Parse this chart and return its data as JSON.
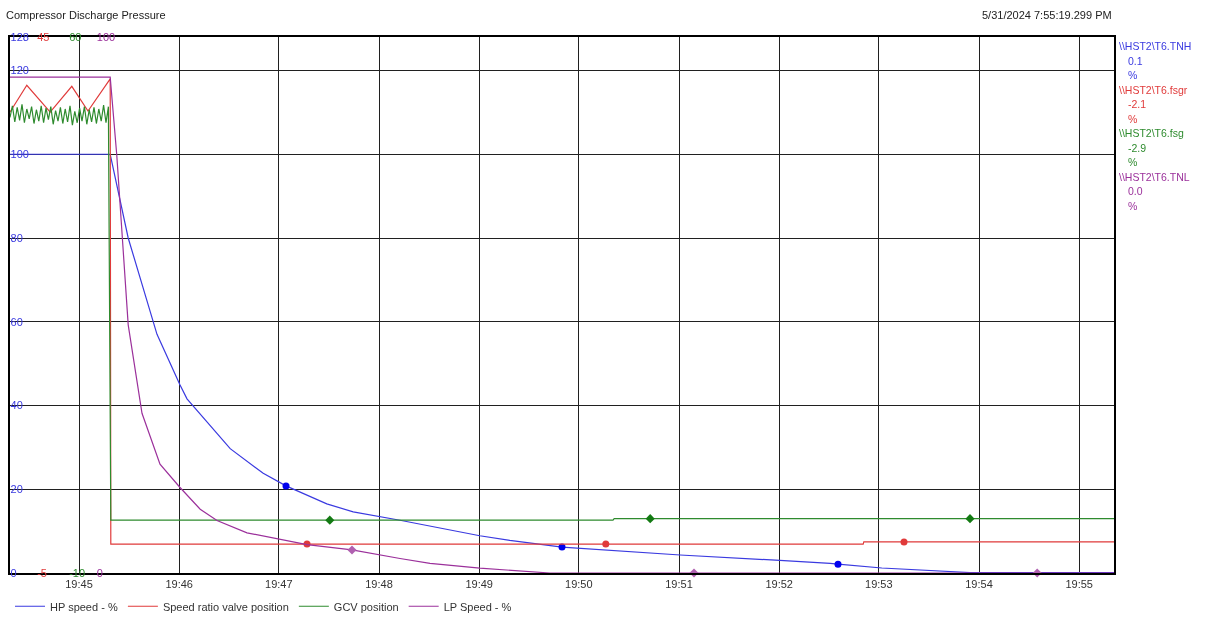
{
  "chart_data": [
    {
      "type": "line",
      "title": "Compressor Discharge Pressure",
      "annotations": [
        "5/31/2024 7:55:19.299 PM",
        "\\\\HST2\\T6.TNH",
        "0.1",
        "%",
        "\\\\HST2\\T6.fsgr",
        "-2.1",
        "%",
        "\\\\HST2\\T6.fsg",
        "-2.9",
        "%"
      ],
      "xlim": [
        19.7385,
        19.9225
      ],
      "xticks": [
        {
          "value": 19.75,
          "label": "19:45"
        },
        {
          "value": 19.7667,
          "label": "19:46"
        },
        {
          "value": 19.7833,
          "label": "19:47"
        },
        {
          "value": 19.8,
          "label": "19:48"
        },
        {
          "value": 19.8167,
          "label": "19:49"
        },
        {
          "value": 19.8333,
          "label": "19:50"
        },
        {
          "value": 19.85,
          "label": "19:51"
        },
        {
          "value": 19.8667,
          "label": "19:52"
        },
        {
          "value": 19.8833,
          "label": "19:53"
        },
        {
          "value": 19.9,
          "label": "19:54"
        },
        {
          "value": 19.9167,
          "label": "19:55"
        }
      ],
      "ylim": [
        0,
        128
      ],
      "yticks": [
        0,
        20,
        40,
        60,
        80,
        100,
        120,
        128
      ],
      "y2lim": [
        -5,
        45
      ],
      "y2ticks": [
        -5,
        45
      ],
      "y3lim": [
        -10,
        60
      ],
      "y3ticks": [
        -10,
        60
      ],
      "grid": true,
      "legend": "bottom",
      "series": [
        {
          "name": "HP speed - %",
          "color": "#3a3ae0",
          "x": [
            19.7385,
            19.7552,
            19.7582,
            19.763,
            19.7668,
            19.768,
            19.7752,
            19.7807,
            19.7845,
            19.7913,
            19.7957,
            19.8035,
            19.8168,
            19.8218,
            19.8305,
            19.8502,
            19.8668,
            19.8752,
            19.8765,
            19.8838,
            19.8985,
            19.9225
          ],
          "values": [
            100,
            100,
            80,
            57,
            45,
            41.6,
            29.7,
            23.8,
            20.8,
            16.5,
            14.6,
            12.6,
            8.9,
            7.8,
            6.2,
            4.3,
            3.0,
            2.3,
            2.1,
            1.2,
            0.1,
            0.1
          ]
        },
        {
          "name": "Speed ratio valve position",
          "color": "#e03a3a",
          "axis": "y2",
          "x": [
            19.7385,
            19.7413,
            19.7452,
            19.7488,
            19.7515,
            19.7552,
            19.7553,
            19.8807,
            19.8808,
            19.9225
          ],
          "values": [
            38.0,
            40.5,
            38.0,
            40.4,
            38.1,
            41.1,
            -2.3,
            -2.3,
            -2.1,
            -2.1
          ]
        },
        {
          "name": "GCV position",
          "color": "#2e8b2e",
          "axis": "y3",
          "x": [
            19.7385,
            19.7389,
            19.7393,
            19.7397,
            19.7401,
            19.7405,
            19.7409,
            19.7413,
            19.7417,
            19.7421,
            19.7425,
            19.7429,
            19.7433,
            19.7437,
            19.7441,
            19.7445,
            19.7449,
            19.7453,
            19.7457,
            19.7461,
            19.7465,
            19.7469,
            19.7473,
            19.7477,
            19.7481,
            19.7485,
            19.7489,
            19.7493,
            19.7497,
            19.7501,
            19.7505,
            19.7509,
            19.7513,
            19.7517,
            19.7521,
            19.7525,
            19.7529,
            19.7533,
            19.7537,
            19.7541,
            19.7545,
            19.7549,
            19.7553,
            19.839,
            19.8392,
            19.9225
          ],
          "values": [
            49.5,
            51.0,
            48.9,
            50.8,
            49.1,
            51.2,
            48.8,
            50.6,
            49.3,
            50.9,
            48.7,
            50.5,
            49.0,
            51.0,
            48.8,
            50.7,
            49.2,
            50.9,
            48.6,
            50.4,
            49.0,
            50.8,
            48.7,
            50.6,
            48.9,
            51.0,
            48.5,
            50.3,
            48.8,
            50.7,
            49.0,
            50.9,
            48.6,
            50.5,
            48.9,
            50.8,
            48.7,
            50.6,
            49.0,
            51.1,
            48.8,
            50.9,
            -3.1,
            -3.1,
            -2.9,
            -2.9
          ]
        },
        {
          "type": "scatter",
          "marker": "circle",
          "color": "#0000ee",
          "x": [
            19.7845,
            19.8305,
            19.8765
          ],
          "values": [
            20.8,
            6.2,
            2.1
          ]
        },
        {
          "type": "scatter",
          "marker": "circle",
          "color": "#e03a3a",
          "axis": "y2",
          "x": [
            19.788,
            19.8378,
            19.8875
          ],
          "values": [
            -2.3,
            -2.3,
            -2.1
          ]
        },
        {
          "type": "scatter",
          "marker": "diamond",
          "color": "#137a13",
          "axis": "y3",
          "x": [
            19.7918,
            19.8452,
            19.8985
          ],
          "values": [
            -3.1,
            -2.9,
            -2.9
          ]
        }
      ]
    },
    {
      "type": "line",
      "annotations": [
        "\\\\HST2\\T6.TNL",
        "0.0",
        "%"
      ],
      "xlim": [
        19.7385,
        19.9225
      ],
      "ylim": [
        0,
        100
      ],
      "yticks": [
        0,
        100
      ],
      "tick_labels": "y",
      "legend": "bottom",
      "series": [
        {
          "name": "LP Speed - %",
          "color": "#9b309b",
          "x": [
            19.7385,
            19.7552,
            19.7563,
            19.7582,
            19.7605,
            19.7635,
            19.7668,
            19.7702,
            19.773,
            19.778,
            19.788,
            19.7955,
            19.8035,
            19.8085,
            19.8168,
            19.8285,
            19.9225
          ],
          "values": [
            92.5,
            92.5,
            77.9,
            46.3,
            29.8,
            20.3,
            16.0,
            11.9,
            9.8,
            7.5,
            5.3,
            4.3,
            2.7,
            1.8,
            0.9,
            0,
            0
          ]
        },
        {
          "type": "scatter",
          "marker": "diamond",
          "color": "#b060b0",
          "x": [
            19.7955,
            19.8525,
            19.9097
          ],
          "values": [
            4.3,
            0,
            0
          ]
        }
      ]
    }
  ]
}
